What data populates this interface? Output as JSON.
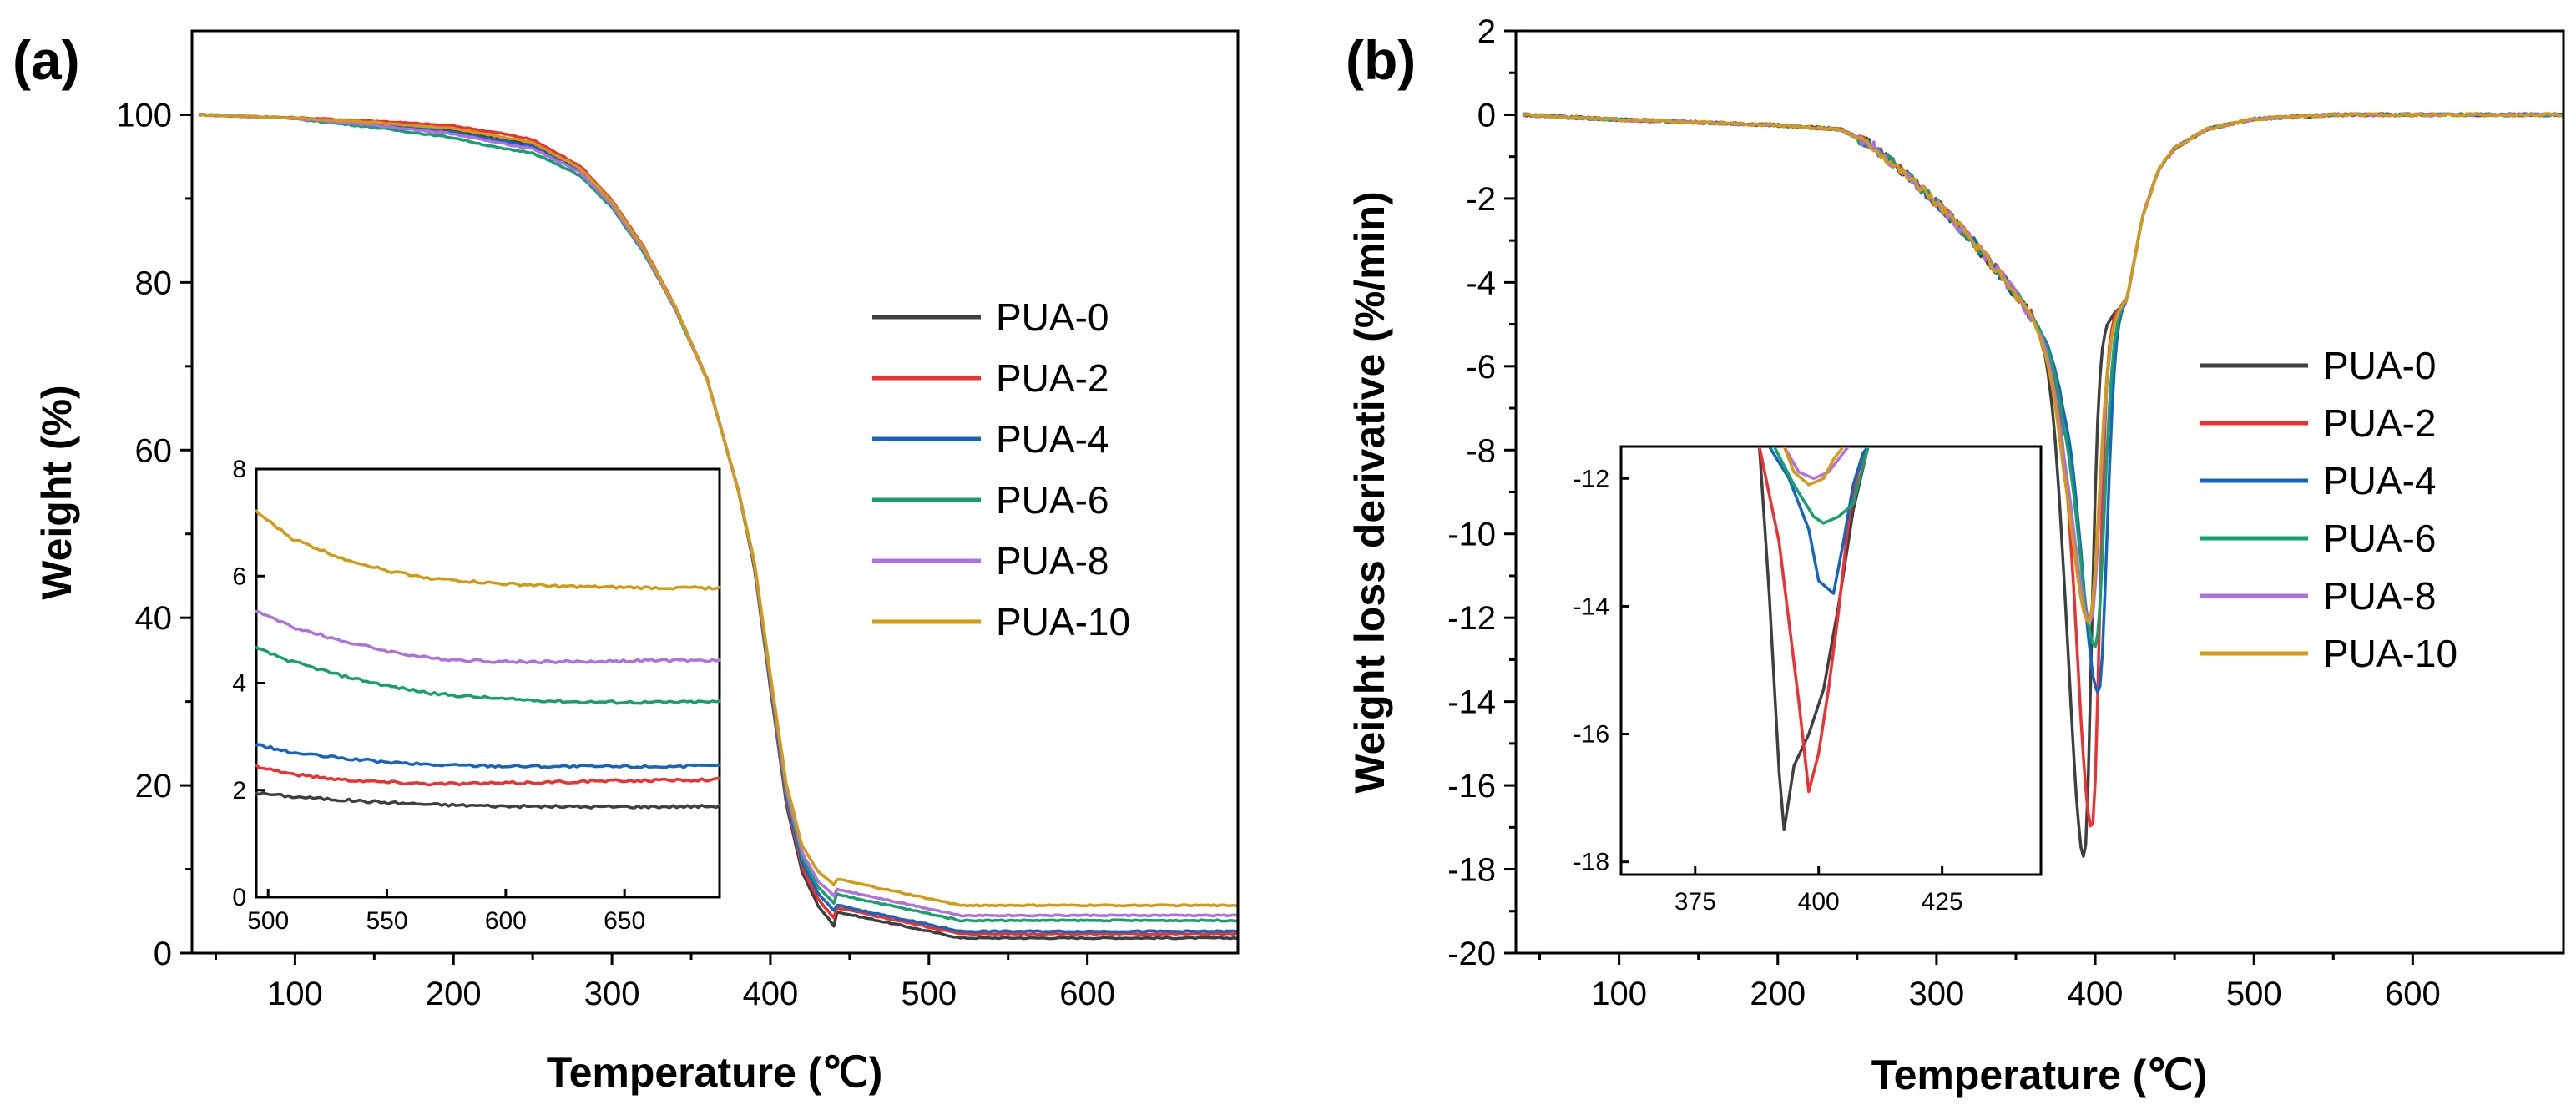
{
  "figure": {
    "panels": [
      {
        "label": "(a)"
      },
      {
        "label": "(b)"
      }
    ]
  },
  "chart_data": [
    {
      "type": "line",
      "title": "",
      "xlabel": "Temperature (℃)",
      "ylabel": "Weight (%)",
      "xlim": [
        35,
        695
      ],
      "ylim": [
        0,
        110
      ],
      "xticks": [
        100,
        200,
        300,
        400,
        500,
        600
      ],
      "yticks": [
        0,
        20,
        40,
        60,
        80,
        100
      ],
      "legend_position": "right-middle",
      "series": [
        {
          "name": "PUA-0",
          "color": "#3f3f3f",
          "residue": 1.8
        },
        {
          "name": "PUA-2",
          "color": "#ee3030",
          "residue": 2.3
        },
        {
          "name": "PUA-4",
          "color": "#1565c0",
          "residue": 2.6
        },
        {
          "name": "PUA-6",
          "color": "#16a06c",
          "residue": 3.9
        },
        {
          "name": "PUA-8",
          "color": "#b070e0",
          "residue": 4.5
        },
        {
          "name": "PUA-10",
          "color": "#d49a14",
          "residue": 5.7
        }
      ],
      "x": [
        40,
        100,
        150,
        200,
        250,
        280,
        300,
        320,
        340,
        360,
        380,
        390,
        400,
        410,
        420,
        430,
        440,
        450,
        460,
        480,
        500,
        550,
        600,
        695
      ],
      "base_curve": [
        100,
        99.6,
        99.0,
        98.2,
        96.5,
        93.5,
        89.5,
        84.0,
        77.0,
        68.5,
        55.0,
        46.0,
        32.0,
        18.5,
        10.5,
        6.8,
        4.6,
        3.4,
        2.6,
        1.9,
        1.5,
        1.2,
        1.05,
        1.0
      ],
      "inset": {
        "xlim": [
          495,
          690
        ],
        "ylim": [
          0,
          8
        ],
        "xticks": [
          500,
          550,
          600,
          650
        ],
        "yticks": [
          0,
          2,
          4,
          6,
          8
        ],
        "x": [
          495,
          510,
          530,
          550,
          570,
          600,
          630,
          660,
          690
        ],
        "series": [
          {
            "name": "PUA-0",
            "values": [
              1.95,
              1.88,
              1.82,
              1.77,
              1.73,
              1.7,
              1.69,
              1.69,
              1.7
            ]
          },
          {
            "name": "PUA-2",
            "values": [
              2.45,
              2.3,
              2.2,
              2.15,
              2.12,
              2.13,
              2.16,
              2.18,
              2.2
            ]
          },
          {
            "name": "PUA-4",
            "values": [
              2.85,
              2.7,
              2.6,
              2.52,
              2.47,
              2.45,
              2.44,
              2.44,
              2.45
            ]
          },
          {
            "name": "PUA-6",
            "values": [
              4.65,
              4.4,
              4.15,
              3.95,
              3.8,
              3.7,
              3.65,
              3.64,
              3.65
            ]
          },
          {
            "name": "PUA-8",
            "values": [
              5.35,
              5.05,
              4.8,
              4.6,
              4.45,
              4.4,
              4.4,
              4.42,
              4.42
            ]
          },
          {
            "name": "PUA-10",
            "values": [
              7.2,
              6.7,
              6.35,
              6.1,
              5.95,
              5.85,
              5.8,
              5.78,
              5.78
            ]
          }
        ]
      }
    },
    {
      "type": "line",
      "title": "",
      "xlabel": "Temperature (℃)",
      "ylabel": "Weight loss derivative (%/min)",
      "xlim": [
        35,
        695
      ],
      "ylim": [
        -20,
        2
      ],
      "xticks": [
        100,
        200,
        300,
        400,
        500,
        600
      ],
      "yticks": [
        -20,
        -18,
        -16,
        -14,
        -12,
        -10,
        -8,
        -6,
        -4,
        -2,
        0,
        2
      ],
      "legend_position": "right-middle",
      "series": [
        {
          "name": "PUA-0",
          "color": "#3f3f3f",
          "peak_temp": 393,
          "peak_value": -17.7,
          "width_left": 30,
          "width_right": 14
        },
        {
          "name": "PUA-2",
          "color": "#ee3030",
          "peak_temp": 398,
          "peak_value": -17.0,
          "width_left": 30,
          "width_right": 14
        },
        {
          "name": "PUA-4",
          "color": "#1565c0",
          "peak_temp": 402,
          "peak_value": -13.8,
          "width_left": 33,
          "width_right": 16
        },
        {
          "name": "PUA-6",
          "color": "#16a06c",
          "peak_temp": 400,
          "peak_value": -12.7,
          "width_left": 34,
          "width_right": 17
        },
        {
          "name": "PUA-8",
          "color": "#b070e0",
          "peak_temp": 397,
          "peak_value": -12.1,
          "width_left": 35,
          "width_right": 18
        },
        {
          "name": "PUA-10",
          "color": "#d49a14",
          "peak_temp": 396,
          "peak_value": -12.1,
          "width_left": 36,
          "width_right": 19
        }
      ],
      "x": [
        40,
        100,
        150,
        200,
        240,
        260,
        280,
        300,
        320,
        340,
        350,
        360,
        370,
        380,
        420,
        430,
        440,
        450,
        470,
        500,
        550,
        600,
        695
      ],
      "shoulder": [
        0,
        -0.12,
        -0.18,
        -0.25,
        -0.35,
        -0.75,
        -1.4,
        -2.1,
        -2.9,
        -3.8,
        -4.3,
        -4.8,
        -5.4,
        -6.2,
        -4.4,
        -2.4,
        -1.3,
        -0.8,
        -0.35,
        -0.1,
        0.0,
        0.0,
        0.0
      ],
      "inset": {
        "xlim": [
          360,
          445
        ],
        "ylim": [
          -18.2,
          -11.5
        ],
        "xticks": [
          375,
          400,
          425
        ],
        "yticks": [
          -18,
          -16,
          -14,
          -12
        ],
        "series": [
          {
            "name": "PUA-0",
            "x": [
              388,
              390,
              392,
              393,
              395,
              398,
              401,
              404,
              407,
              410
            ],
            "values": [
              -11.5,
              -13.8,
              -16.6,
              -17.5,
              -16.5,
              -16.0,
              -15.3,
              -14.0,
              -12.5,
              -11.5
            ]
          },
          {
            "name": "PUA-2",
            "x": [
              388,
              392,
              396,
              398,
              400,
              402,
              404,
              406,
              408,
              410
            ],
            "values": [
              -11.5,
              -13.0,
              -15.5,
              -16.9,
              -16.3,
              -15.3,
              -14.1,
              -12.7,
              -11.9,
              -11.5
            ]
          },
          {
            "name": "PUA-4",
            "x": [
              390,
              394,
              398,
              400,
              403,
              405,
              407,
              409,
              410
            ],
            "values": [
              -11.5,
              -12.0,
              -12.8,
              -13.6,
              -13.8,
              -13.0,
              -12.1,
              -11.6,
              -11.5
            ]
          },
          {
            "name": "PUA-6",
            "x": [
              391,
              395,
              399,
              401,
              404,
              407,
              409,
              410
            ],
            "values": [
              -11.5,
              -12.1,
              -12.6,
              -12.7,
              -12.6,
              -12.4,
              -11.8,
              -11.5
            ]
          },
          {
            "name": "PUA-8",
            "x": [
              393,
              396,
              399,
              402,
              404,
              406
            ],
            "values": [
              -11.5,
              -11.9,
              -12.0,
              -11.9,
              -11.7,
              -11.5
            ]
          },
          {
            "name": "PUA-10",
            "x": [
              393,
              395,
              398,
              401,
              403,
              405
            ],
            "values": [
              -11.5,
              -11.9,
              -12.1,
              -12.0,
              -11.7,
              -11.5
            ]
          }
        ]
      }
    }
  ]
}
